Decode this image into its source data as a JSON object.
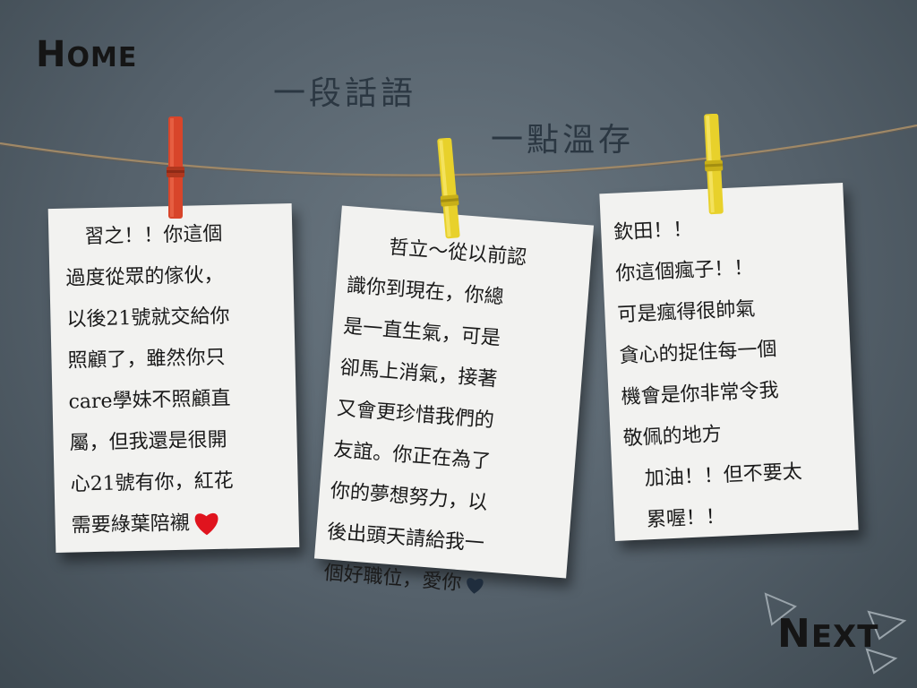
{
  "nav": {
    "home_first": "H",
    "home_rest": "OME",
    "next_first": "N",
    "next_rest": "EXT"
  },
  "headings": {
    "line1": "一段話語",
    "line2": "一點溫存"
  },
  "notes": [
    {
      "lines": [
        "　習之！！你這個",
        "過度從眾的傢伙，",
        "以後21號就交給你",
        "照顧了，雖然你只",
        "care學妹不照顧直",
        "屬，但我還是很開",
        "心21號有你，紅花",
        "需要綠葉陪襯"
      ],
      "heart_color": "#e0141e"
    },
    {
      "lines": [
        "　　哲立～從以前認",
        "識你到現在，你總",
        "是一直生氣，可是",
        "卻馬上消氣，接著",
        "又會更珍惜我們的",
        "友誼。你正在為了",
        "你的夢想努力，以",
        "後出頭天請給我一",
        "個好職位，愛你"
      ],
      "heart_color": "#1f2d3d"
    },
    {
      "lines": [
        "欽田！！",
        "你這個瘋子！！",
        "可是瘋得很帥氣",
        "貪心的捉住每一個",
        "機會是你非常令我",
        "敬佩的地方",
        "　加油！！但不要太",
        "　累喔！！"
      ]
    }
  ],
  "colors": {
    "clip_red": "#d8452a",
    "clip_yellow": "#e8d12b",
    "rope": "#a08866"
  }
}
